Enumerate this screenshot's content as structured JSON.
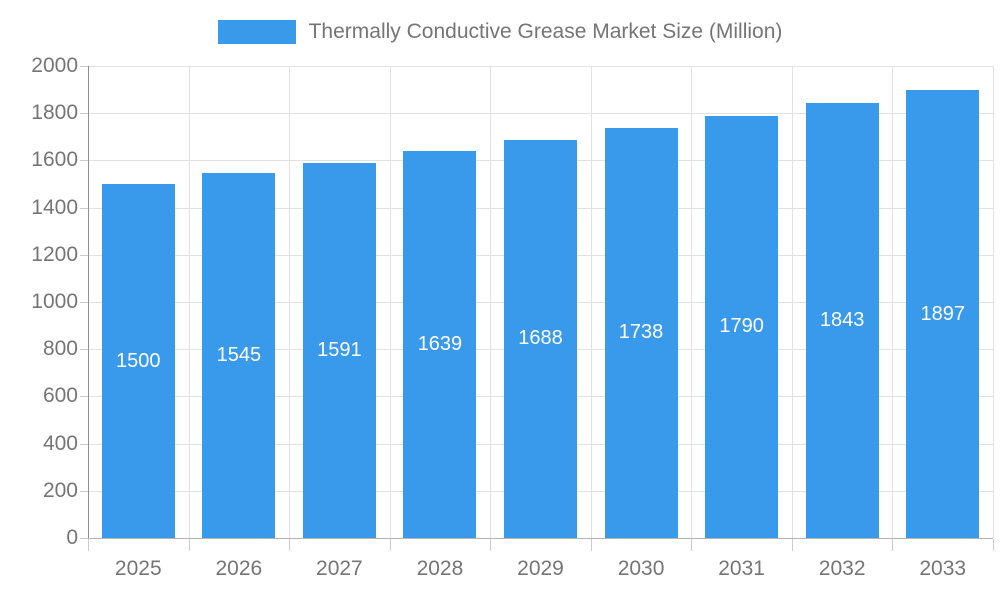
{
  "chart_data": {
    "type": "bar",
    "title": "",
    "legend": "Thermally Conductive Grease Market Size (Million)",
    "legend_position": "top",
    "categories": [
      "2025",
      "2026",
      "2027",
      "2028",
      "2029",
      "2030",
      "2031",
      "2032",
      "2033"
    ],
    "values": [
      1500,
      1545,
      1591,
      1639,
      1688,
      1738,
      1790,
      1843,
      1897
    ],
    "xlabel": "",
    "ylabel": "",
    "ylim": [
      0,
      2000
    ],
    "ytick_step": 200,
    "y_tick_labels": [
      "0",
      "200",
      "400",
      "600",
      "800",
      "1000",
      "1200",
      "1400",
      "1600",
      "1800",
      "2000"
    ],
    "grid": true,
    "bar_labels_inside": true,
    "colors": {
      "bar": "#3999EB",
      "bar_label": "#FFFFFF",
      "axis_text": "#757575",
      "legend_text": "#757575",
      "gridline": "#E2E2E2",
      "y_axis_line": "#8F8F8F",
      "x_axis_line": "#B3B3B3",
      "tick": "#CCCCCC",
      "background": "#FFFFFF"
    }
  }
}
